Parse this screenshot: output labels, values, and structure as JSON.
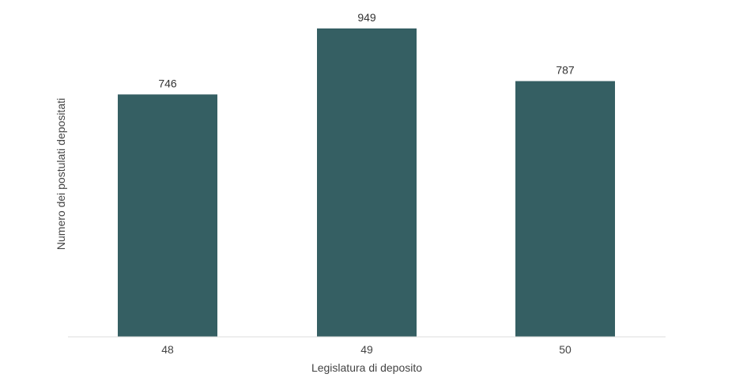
{
  "chart_data": {
    "type": "bar",
    "categories": [
      "48",
      "49",
      "50"
    ],
    "values": [
      746,
      949,
      787
    ],
    "xlabel": "Legislatura di deposito",
    "ylabel": "Numero dei postulati depositati",
    "ylim": [
      0,
      949
    ],
    "grid": false,
    "legend": "none",
    "bar_color": "#355f63",
    "axis_color": "#dddddd"
  }
}
